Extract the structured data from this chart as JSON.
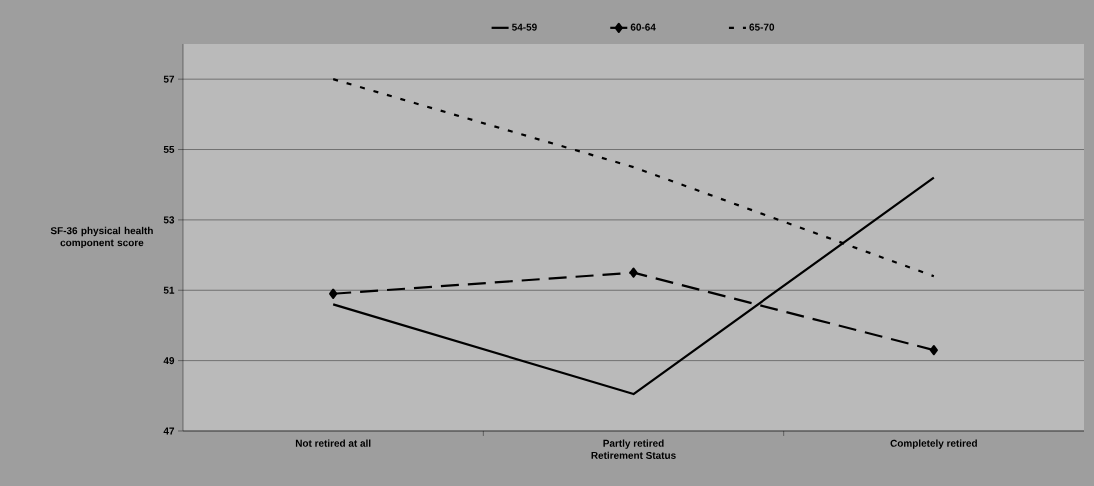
{
  "chart_data": {
    "type": "line",
    "xlabel": "Retirement Status",
    "ylabel": "SF-36 physical health component score",
    "categories": [
      "Not retired at all",
      "Partly retired",
      "Completely retired"
    ],
    "series": [
      {
        "name": "54-59",
        "color": "#000000",
        "values": [
          50.6,
          48.05,
          54.2
        ],
        "line_style": "solid",
        "marker": "none"
      },
      {
        "name": "60-64",
        "color": "#000000",
        "values": [
          50.9,
          51.5,
          49.3
        ],
        "line_style": "dashed",
        "marker": "diamond"
      },
      {
        "name": "65-70",
        "color": "#000000",
        "values": [
          57.0,
          54.5,
          51.4
        ],
        "line_style": "dotted",
        "marker": "none"
      }
    ],
    "ylim": [
      47,
      58
    ],
    "yticks": [
      47,
      49,
      51,
      53,
      55,
      57
    ],
    "grid": "y",
    "legend": "top"
  }
}
